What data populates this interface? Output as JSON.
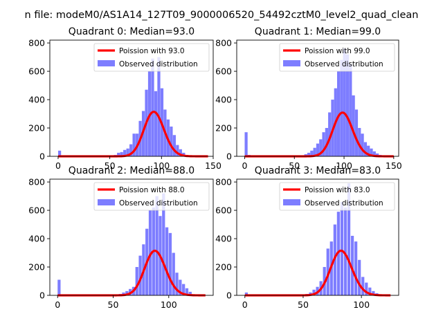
{
  "figure": {
    "suptitle": "n file: modeM0/AS1A14_127T09_9000006520_54492cztM0_level2_quad_clean",
    "colors": {
      "poisson": "#ff0000",
      "observed": "#7d7dff"
    }
  },
  "chart_data": [
    {
      "type": "bar",
      "title": "Quadrant 0: Median=93.0",
      "median": 93.0,
      "xlim": [
        -8,
        150
      ],
      "ylim": [
        0,
        820
      ],
      "xticks": [
        0,
        50,
        100,
        150
      ],
      "yticks": [
        0,
        200,
        400,
        600,
        800
      ],
      "legend": {
        "position": "top-right",
        "poisson_label": "Poission with 93.0",
        "observed_label": "Observed distribution"
      },
      "series": [
        {
          "name": "Observed distribution",
          "kind": "histogram",
          "bin_width": 2.85,
          "bins": [
            {
              "x": 0,
              "y": 40
            },
            {
              "x": 54,
              "y": 10
            },
            {
              "x": 57,
              "y": 25
            },
            {
              "x": 60,
              "y": 30
            },
            {
              "x": 63,
              "y": 45
            },
            {
              "x": 66,
              "y": 55
            },
            {
              "x": 69,
              "y": 85
            },
            {
              "x": 72,
              "y": 160
            },
            {
              "x": 75,
              "y": 160
            },
            {
              "x": 78,
              "y": 250
            },
            {
              "x": 81,
              "y": 320
            },
            {
              "x": 84,
              "y": 470
            },
            {
              "x": 87,
              "y": 600
            },
            {
              "x": 90,
              "y": 690
            },
            {
              "x": 93,
              "y": 460
            },
            {
              "x": 96,
              "y": 700
            },
            {
              "x": 99,
              "y": 480
            },
            {
              "x": 102,
              "y": 330
            },
            {
              "x": 105,
              "y": 260
            },
            {
              "x": 108,
              "y": 210
            },
            {
              "x": 111,
              "y": 150
            },
            {
              "x": 114,
              "y": 80
            },
            {
              "x": 117,
              "y": 50
            },
            {
              "x": 120,
              "y": 25
            },
            {
              "x": 123,
              "y": 10
            }
          ]
        },
        {
          "name": "Poission with 93.0",
          "kind": "poisson",
          "mean": 93.0,
          "scale": 7600,
          "x_range": [
            0,
            145
          ]
        }
      ]
    },
    {
      "type": "bar",
      "title": "Quadrant 1: Median=99.0",
      "median": 99.0,
      "xlim": [
        -8,
        155
      ],
      "ylim": [
        0,
        820
      ],
      "xticks": [
        0,
        50,
        100,
        150
      ],
      "yticks": [
        0,
        200,
        400,
        600,
        800
      ],
      "legend": {
        "position": "top-right",
        "poisson_label": "Poission with 99.0",
        "observed_label": "Observed distribution"
      },
      "series": [
        {
          "name": "Observed distribution",
          "kind": "histogram",
          "bin_width": 2.95,
          "bins": [
            {
              "x": 0,
              "y": 170
            },
            {
              "x": 3,
              "y": 10
            },
            {
              "x": 60,
              "y": 15
            },
            {
              "x": 63,
              "y": 25
            },
            {
              "x": 66,
              "y": 40
            },
            {
              "x": 69,
              "y": 60
            },
            {
              "x": 72,
              "y": 90
            },
            {
              "x": 75,
              "y": 120
            },
            {
              "x": 78,
              "y": 170
            },
            {
              "x": 81,
              "y": 200
            },
            {
              "x": 84,
              "y": 310
            },
            {
              "x": 87,
              "y": 400
            },
            {
              "x": 90,
              "y": 480
            },
            {
              "x": 93,
              "y": 600
            },
            {
              "x": 96,
              "y": 680
            },
            {
              "x": 99,
              "y": 760
            },
            {
              "x": 102,
              "y": 720
            },
            {
              "x": 105,
              "y": 650
            },
            {
              "x": 108,
              "y": 430
            },
            {
              "x": 111,
              "y": 330
            },
            {
              "x": 114,
              "y": 200
            },
            {
              "x": 117,
              "y": 160
            },
            {
              "x": 120,
              "y": 100
            },
            {
              "x": 123,
              "y": 75
            },
            {
              "x": 126,
              "y": 55
            },
            {
              "x": 129,
              "y": 35
            },
            {
              "x": 132,
              "y": 20
            },
            {
              "x": 135,
              "y": 10
            }
          ]
        },
        {
          "name": "Poission with 99.0",
          "kind": "poisson",
          "mean": 99.0,
          "scale": 7700,
          "x_range": [
            0,
            150
          ]
        }
      ]
    },
    {
      "type": "bar",
      "title": "Quadrant 2: Median=88.0",
      "median": 88.0,
      "xlim": [
        -7,
        140
      ],
      "ylim": [
        0,
        820
      ],
      "xticks": [
        0,
        50,
        100
      ],
      "yticks": [
        0,
        200,
        400,
        600,
        800
      ],
      "legend": {
        "position": "top-right",
        "poisson_label": "Poission with 88.0",
        "observed_label": "Observed distribution"
      },
      "series": [
        {
          "name": "Observed distribution",
          "kind": "histogram",
          "bin_width": 2.65,
          "bins": [
            {
              "x": 0,
              "y": 110
            },
            {
              "x": 55,
              "y": 10
            },
            {
              "x": 58,
              "y": 20
            },
            {
              "x": 61,
              "y": 30
            },
            {
              "x": 64,
              "y": 45
            },
            {
              "x": 67,
              "y": 60
            },
            {
              "x": 70,
              "y": 200
            },
            {
              "x": 73,
              "y": 280
            },
            {
              "x": 76,
              "y": 360
            },
            {
              "x": 79,
              "y": 470
            },
            {
              "x": 82,
              "y": 600
            },
            {
              "x": 85,
              "y": 620
            },
            {
              "x": 88,
              "y": 700
            },
            {
              "x": 91,
              "y": 560
            },
            {
              "x": 94,
              "y": 720
            },
            {
              "x": 97,
              "y": 480
            },
            {
              "x": 100,
              "y": 440
            },
            {
              "x": 103,
              "y": 300
            },
            {
              "x": 106,
              "y": 160
            },
            {
              "x": 109,
              "y": 110
            },
            {
              "x": 112,
              "y": 80
            },
            {
              "x": 115,
              "y": 50
            },
            {
              "x": 118,
              "y": 25
            }
          ]
        },
        {
          "name": "Poission with 88.0",
          "kind": "poisson",
          "mean": 88.0,
          "scale": 7400,
          "x_range": [
            0,
            133
          ]
        }
      ]
    },
    {
      "type": "bar",
      "title": "Quadrant 3: Median=83.0",
      "median": 83.0,
      "xlim": [
        -7,
        132
      ],
      "ylim": [
        0,
        820
      ],
      "xticks": [
        0,
        50,
        100
      ],
      "yticks": [
        0,
        200,
        400,
        600,
        800
      ],
      "legend": {
        "position": "top-right",
        "poisson_label": "Poission with 83.0",
        "observed_label": "Observed distribution"
      },
      "series": [
        {
          "name": "Observed distribution",
          "kind": "histogram",
          "bin_width": 2.5,
          "bins": [
            {
              "x": 0,
              "y": 20
            },
            {
              "x": 52,
              "y": 10
            },
            {
              "x": 55,
              "y": 20
            },
            {
              "x": 58,
              "y": 40
            },
            {
              "x": 61,
              "y": 60
            },
            {
              "x": 64,
              "y": 100
            },
            {
              "x": 67,
              "y": 200
            },
            {
              "x": 70,
              "y": 330
            },
            {
              "x": 73,
              "y": 380
            },
            {
              "x": 76,
              "y": 500
            },
            {
              "x": 79,
              "y": 590
            },
            {
              "x": 82,
              "y": 660
            },
            {
              "x": 85,
              "y": 620
            },
            {
              "x": 88,
              "y": 790
            },
            {
              "x": 91,
              "y": 420
            },
            {
              "x": 94,
              "y": 380
            },
            {
              "x": 97,
              "y": 250
            },
            {
              "x": 100,
              "y": 130
            },
            {
              "x": 103,
              "y": 90
            },
            {
              "x": 106,
              "y": 55
            },
            {
              "x": 109,
              "y": 30
            },
            {
              "x": 112,
              "y": 15
            }
          ]
        },
        {
          "name": "Poission with 83.0",
          "kind": "poisson",
          "mean": 83.0,
          "scale": 7200,
          "x_range": [
            0,
            125
          ]
        }
      ]
    }
  ]
}
